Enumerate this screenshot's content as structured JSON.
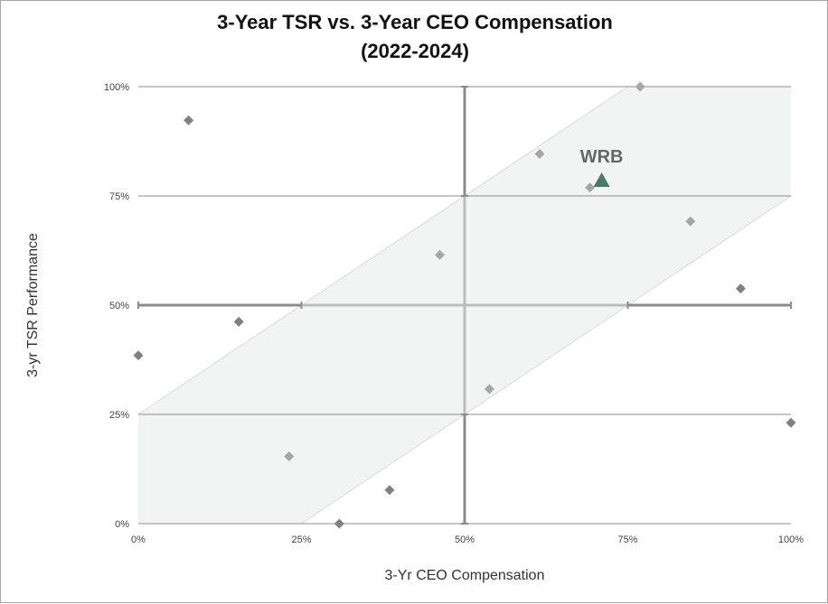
{
  "chart_data": {
    "type": "scatter",
    "title": [
      "3-Year TSR vs. 3-Year CEO Compensation",
      "(2022-2024)"
    ],
    "xlabel": "3-Yr CEO Compensation",
    "ylabel": "3-yr TSR Performance",
    "xlim": [
      0,
      100
    ],
    "ylim": [
      0,
      100
    ],
    "x_ticks": [
      0,
      25,
      50,
      75,
      100
    ],
    "y_ticks": [
      0,
      25,
      50,
      75,
      100
    ],
    "x_tick_labels": [
      "0%",
      "25%",
      "50%",
      "75%",
      "100%"
    ],
    "y_tick_labels": [
      "0%",
      "25%",
      "50%",
      "75%",
      "100%"
    ],
    "grid": true,
    "alignment_band": {
      "offset": 25
    },
    "peers": [
      {
        "x": 0,
        "y": 38.5
      },
      {
        "x": 7.7,
        "y": 92.3
      },
      {
        "x": 15.4,
        "y": 46.2
      },
      {
        "x": 23.1,
        "y": 15.4
      },
      {
        "x": 30.8,
        "y": 0
      },
      {
        "x": 38.5,
        "y": 7.7
      },
      {
        "x": 46.2,
        "y": 61.5
      },
      {
        "x": 53.8,
        "y": 30.8
      },
      {
        "x": 61.5,
        "y": 84.6
      },
      {
        "x": 69.2,
        "y": 76.9
      },
      {
        "x": 76.9,
        "y": 100
      },
      {
        "x": 84.6,
        "y": 69.2
      },
      {
        "x": 92.3,
        "y": 53.8
      },
      {
        "x": 100,
        "y": 23.1
      }
    ],
    "highlight": {
      "label": "WRB",
      "x": 71,
      "y": 78.5,
      "color": "#4a7a63"
    },
    "colors": {
      "band_fill": "#f1f4f3",
      "band_edge": "#d4dcd8",
      "marker_dark": "#808080",
      "marker_light": "#a6a6a6"
    }
  }
}
